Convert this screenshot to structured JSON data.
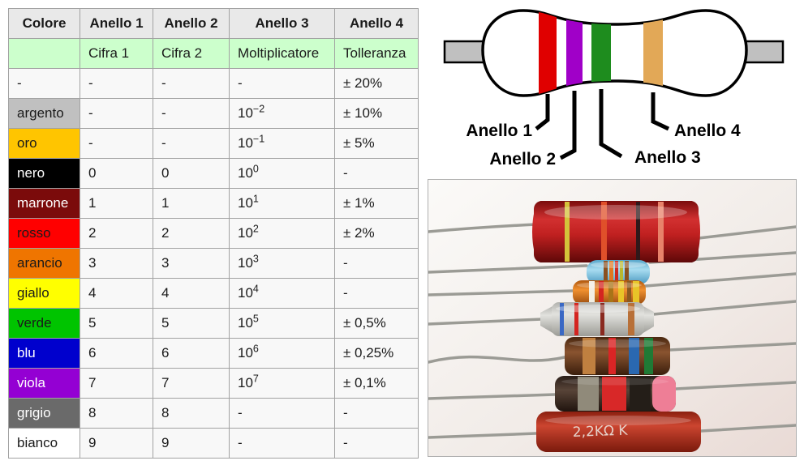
{
  "table": {
    "headers": [
      "Colore",
      "Anello 1",
      "Anello 2",
      "Anello 3",
      "Anello 4"
    ],
    "subheaders": [
      "",
      "Cifra 1",
      "Cifra 2",
      "Moltiplicatore",
      "Tolleranza"
    ],
    "header_bg": "#e9e9e9",
    "subheader_bg": "#ccffcc",
    "cell_bg": "#f8f8f8",
    "border_color": "#a2a2a2",
    "rows": [
      {
        "color_label": "-",
        "swatch": "#f8f8f8",
        "text_color": "#1a1a1a",
        "cifra1": "-",
        "cifra2": "-",
        "mult_base": "-",
        "mult_exp": "",
        "tolleranza": "± 20%"
      },
      {
        "color_label": "argento",
        "swatch": "#c0c0c0",
        "text_color": "#1a1a1a",
        "cifra1": "-",
        "cifra2": "-",
        "mult_base": "10",
        "mult_exp": "−2",
        "tolleranza": "± 10%"
      },
      {
        "color_label": "oro",
        "swatch": "#ffc500",
        "text_color": "#1a1a1a",
        "cifra1": "-",
        "cifra2": "-",
        "mult_base": "10",
        "mult_exp": "−1",
        "tolleranza": "± 5%"
      },
      {
        "color_label": "nero",
        "swatch": "#000000",
        "text_color": "#ffffff",
        "cifra1": "0",
        "cifra2": "0",
        "mult_base": "10",
        "mult_exp": "0",
        "tolleranza": "-"
      },
      {
        "color_label": "marrone",
        "swatch": "#7b0b0b",
        "text_color": "#ffffff",
        "cifra1": "1",
        "cifra2": "1",
        "mult_base": "10",
        "mult_exp": "1",
        "tolleranza": "± 1%"
      },
      {
        "color_label": "rosso",
        "swatch": "#ff0000",
        "text_color": "#1a1a1a",
        "cifra1": "2",
        "cifra2": "2",
        "mult_base": "10",
        "mult_exp": "2",
        "tolleranza": "± 2%"
      },
      {
        "color_label": "arancio",
        "swatch": "#ef7500",
        "text_color": "#1a1a1a",
        "cifra1": "3",
        "cifra2": "3",
        "mult_base": "10",
        "mult_exp": "3",
        "tolleranza": "-"
      },
      {
        "color_label": "giallo",
        "swatch": "#ffff00",
        "text_color": "#1a1a1a",
        "cifra1": "4",
        "cifra2": "4",
        "mult_base": "10",
        "mult_exp": "4",
        "tolleranza": "-"
      },
      {
        "color_label": "verde",
        "swatch": "#00c400",
        "text_color": "#1a1a1a",
        "cifra1": "5",
        "cifra2": "5",
        "mult_base": "10",
        "mult_exp": "5",
        "tolleranza": "± 0,5%"
      },
      {
        "color_label": "blu",
        "swatch": "#0000cd",
        "text_color": "#ffffff",
        "cifra1": "6",
        "cifra2": "6",
        "mult_base": "10",
        "mult_exp": "6",
        "tolleranza": "± 0,25%"
      },
      {
        "color_label": "viola",
        "swatch": "#9400d3",
        "text_color": "#ffffff",
        "cifra1": "7",
        "cifra2": "7",
        "mult_base": "10",
        "mult_exp": "7",
        "tolleranza": "± 0,1%"
      },
      {
        "color_label": "grigio",
        "swatch": "#6a6a6a",
        "text_color": "#ffffff",
        "cifra1": "8",
        "cifra2": "8",
        "mult_base": "-",
        "mult_exp": "",
        "tolleranza": "-"
      },
      {
        "color_label": "bianco",
        "swatch": "#ffffff",
        "text_color": "#1a1a1a",
        "cifra1": "9",
        "cifra2": "9",
        "mult_base": "-",
        "mult_exp": "",
        "tolleranza": "-"
      }
    ]
  },
  "diagram": {
    "labels": [
      "Anello 1",
      "Anello 2",
      "Anello 3",
      "Anello 4"
    ],
    "bands": [
      {
        "name": "rosso",
        "color": "#e00000"
      },
      {
        "name": "viola",
        "color": "#a000c8"
      },
      {
        "name": "verde",
        "color": "#1e8c1e"
      },
      {
        "name": "oro",
        "color": "#e2a857"
      }
    ],
    "lead_color": "#c0c0c0",
    "body_color": "#ffffff",
    "outline_color": "#000000"
  },
  "photo": {
    "marking": "2,2KΩ K",
    "resistors": [
      {
        "name": "large-red",
        "body": "#b01818",
        "bands": [
          "#d4c23a",
          "#e0502a",
          "#30181a",
          "#e8826a"
        ]
      },
      {
        "name": "small-light-blue",
        "body": "#7cc4e0",
        "bands": [
          "#8a5020",
          "#e07820",
          "#cc2a20",
          "#b8b830",
          "#8a5020"
        ]
      },
      {
        "name": "orange",
        "body": "#e08030",
        "bands": [
          "#f2eee2",
          "#d42520",
          "#a87418",
          "#e8c428",
          "#8a5a20",
          "#e8c428"
        ]
      },
      {
        "name": "light-gray",
        "body": "#cfcfcb",
        "bands": [
          "#3a68c4",
          "#d42520",
          "#8a2a20",
          "#b87038"
        ]
      },
      {
        "name": "brown",
        "body": "#6a3a22",
        "bands": [
          "#c08040",
          "#da2525",
          "#2a68b0",
          "#1f7a35"
        ]
      },
      {
        "name": "dark-brown",
        "body": "#3a2c22",
        "bands": [
          "#908a7a",
          "#d82828",
          "#241e18",
          "#ee7e96"
        ]
      },
      {
        "name": "rust-red",
        "body": "#b03020",
        "bands": []
      }
    ]
  }
}
